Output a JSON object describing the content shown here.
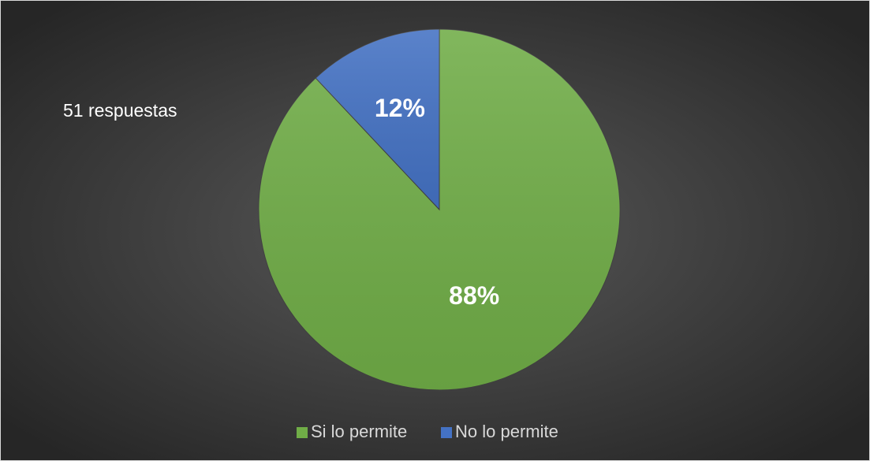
{
  "chart_data": {
    "type": "pie",
    "annotation": "51 respuestas",
    "categories": [
      "Si lo permite",
      "No lo permite"
    ],
    "values": [
      88,
      12
    ],
    "value_labels": [
      "88%",
      "12%"
    ],
    "colors": [
      "#70ad47",
      "#4472c4"
    ],
    "legend": "bottom"
  }
}
